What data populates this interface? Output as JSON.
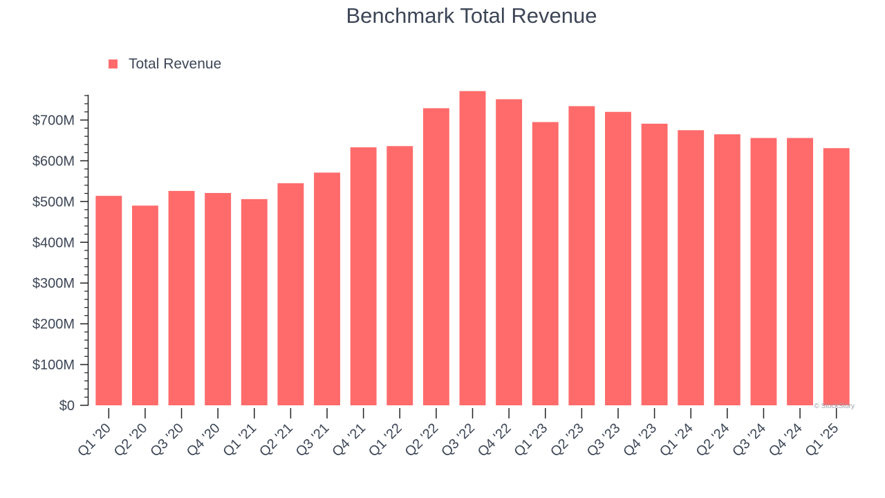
{
  "chart_data": {
    "type": "bar",
    "title": "Benchmark Total Revenue",
    "xlabel": "",
    "ylabel": "",
    "legend": {
      "position": "top-left",
      "entries": [
        "Total Revenue"
      ]
    },
    "grid": false,
    "ylim": [
      0,
      762000000
    ],
    "yticks": [
      {
        "value": 0,
        "label": "$0"
      },
      {
        "value": 100000000,
        "label": "$100M"
      },
      {
        "value": 200000000,
        "label": "$200M"
      },
      {
        "value": 300000000,
        "label": "$300M"
      },
      {
        "value": 400000000,
        "label": "$400M"
      },
      {
        "value": 500000000,
        "label": "$500M"
      },
      {
        "value": 600000000,
        "label": "$600M"
      },
      {
        "value": 700000000,
        "label": "$700M"
      }
    ],
    "categories": [
      "Q1 '20",
      "Q2 '20",
      "Q3 '20",
      "Q4 '20",
      "Q1 '21",
      "Q2 '21",
      "Q3 '21",
      "Q4 '21",
      "Q1 '22",
      "Q2 '22",
      "Q3 '22",
      "Q4 '22",
      "Q1 '23",
      "Q2 '23",
      "Q3 '23",
      "Q4 '23",
      "Q1 '24",
      "Q2 '24",
      "Q3 '24",
      "Q4 '24",
      "Q1 '25"
    ],
    "series": [
      {
        "name": "Total Revenue",
        "color": "#ff6b6b",
        "values": [
          514000000,
          490000000,
          526000000,
          521000000,
          506000000,
          545000000,
          571000000,
          633000000,
          636000000,
          729000000,
          771000000,
          751000000,
          695000000,
          734000000,
          720000000,
          691000000,
          675000000,
          665000000,
          656000000,
          656000000,
          631000000
        ]
      }
    ]
  },
  "watermark": "© StockStory"
}
